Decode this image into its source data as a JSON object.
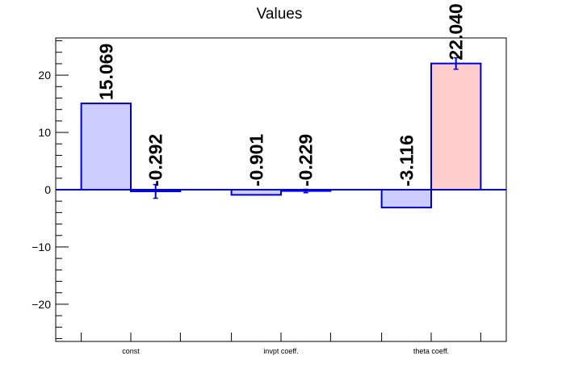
{
  "chart_data": {
    "type": "bar",
    "title": "Values",
    "categories": [
      "const",
      "invpt coeff.",
      "theta coeff."
    ],
    "ylim": [
      -26.5,
      26.5
    ],
    "yticks": [
      -20,
      -10,
      0,
      10,
      20
    ],
    "series": [
      {
        "values": [
          15.069,
          -0.901,
          -3.116
        ],
        "errors": [
          0,
          0,
          0
        ]
      },
      {
        "values": [
          -0.292,
          -0.229,
          22.04
        ],
        "errors": [
          1.2,
          0.3,
          1.0
        ]
      }
    ],
    "labels": [
      [
        "15.069",
        "-0.901",
        "-3.116"
      ],
      [
        "-0.292",
        "-0.229",
        "22.040"
      ]
    ],
    "grid": false,
    "colors": {
      "series0_fill": "#ccccff",
      "series1_fill": "#ccccff",
      "highlight_fill": "#ffcccc",
      "edge": "#0000cc"
    },
    "highlight": {
      "series": 1,
      "category": 2
    }
  }
}
